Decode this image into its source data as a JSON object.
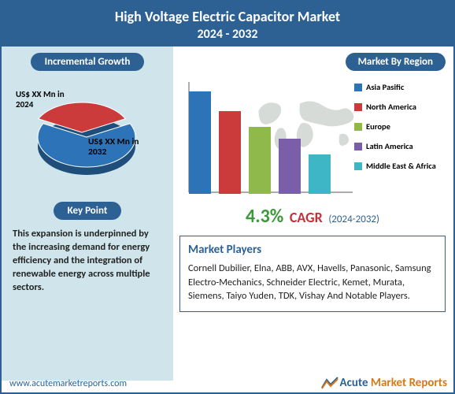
{
  "header": {
    "title": "High Voltage Electric Capacitor Market",
    "years": "2024 - 2032"
  },
  "left": {
    "incremental_label": "Incremental Growth",
    "keypoint_label": "Key Point",
    "keypoint_text": "This expansion is underpinned by the increasing demand for energy efficiency and the integration of renewable energy across multiple sectors.",
    "pie": {
      "slices": [
        {
          "label": "US$ XX Mn in 2024",
          "color": "#cc3b3b",
          "value": 35
        },
        {
          "label": "US$ XX Mn in 2032",
          "color": "#2d73b8",
          "value": 65
        }
      ],
      "stroke": "#ffffff"
    }
  },
  "right": {
    "region_label": "Market By Region",
    "bar_chart": {
      "type": "bar",
      "axis_color": "#7a7a7a",
      "max": 130,
      "bars": [
        {
          "name": "Asia Pasific",
          "value": 130,
          "color": "#2d73b8"
        },
        {
          "name": "North America",
          "value": 105,
          "color": "#cc3b3b"
        },
        {
          "name": "Europe",
          "value": 85,
          "color": "#8fb94a"
        },
        {
          "name": "Latin America",
          "value": 70,
          "color": "#7a5fa8"
        },
        {
          "name": "Middle East & Africa",
          "value": 50,
          "color": "#3fb6c6"
        }
      ]
    },
    "cagr": {
      "value": "4.3%",
      "label": "CAGR",
      "range": "(2024-2032)"
    },
    "players": {
      "title": "Market Players",
      "text": "Cornell Dubilier, Elna, ABB, AVX, Havells, Panasonic, Samsung Electro-Mechanics, Schneider Electric, Kemet, Murata, Siemens, Taiyo Yuden, TDK, Vishay And Notable Players."
    }
  },
  "footer": {
    "url": "www.acutemarketreports.com",
    "logo1": "Acute",
    "logo2": " Market Reports"
  }
}
